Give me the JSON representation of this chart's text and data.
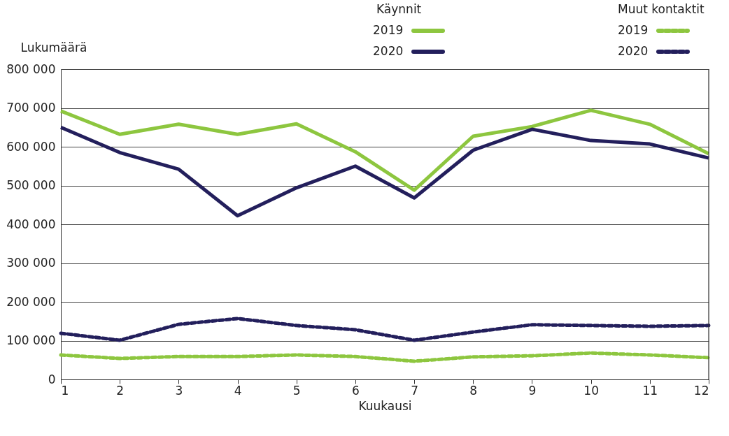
{
  "chart_data": {
    "type": "line",
    "xlabel": "Kuukausi",
    "ylabel": "Lukumäärä",
    "x": [
      1,
      2,
      3,
      4,
      5,
      6,
      7,
      8,
      9,
      10,
      11,
      12
    ],
    "xlim": [
      1,
      12
    ],
    "xticks": [
      1,
      2,
      3,
      4,
      5,
      6,
      7,
      8,
      9,
      10,
      11,
      12
    ],
    "ylim": [
      0,
      800000
    ],
    "yticks": [
      0,
      {
        "value": 100000,
        "label": "100 000"
      },
      {
        "value": 200000,
        "label": "200 000"
      },
      {
        "value": 300000,
        "label": "300 000"
      },
      {
        "value": 400000,
        "label": "400 000"
      },
      {
        "value": 500000,
        "label": "500 000"
      },
      {
        "value": 600000,
        "label": "600 000"
      },
      {
        "value": 700000,
        "label": "700 000"
      },
      {
        "value": 800000,
        "label": "800 000"
      }
    ],
    "grid": "y",
    "legend": "top right",
    "annotations": [
      "Käynnit",
      "Muut kontaktit"
    ],
    "series": [
      {
        "name": "2019",
        "color": "#8dc63f",
        "line_style": "solid",
        "values": [
          692000,
          632000,
          658000,
          632000,
          659000,
          587000,
          488000,
          627000,
          652000,
          694000,
          658000,
          582000
        ]
      },
      {
        "name": "2020",
        "color": "#231f5c",
        "line_style": "solid",
        "values": [
          650000,
          585000,
          542000,
          422000,
          494000,
          550000,
          468000,
          591000,
          645000,
          616000,
          607000,
          571000
        ]
      },
      {
        "name": "2019",
        "color": "#8dc63f",
        "line_style": "dashed",
        "values": [
          63000,
          54000,
          59000,
          59000,
          63000,
          59000,
          47000,
          58000,
          61000,
          68000,
          63000,
          56000
        ]
      },
      {
        "name": "2020",
        "color": "#231f5c",
        "line_style": "dashed",
        "values": [
          119000,
          101000,
          142000,
          157000,
          139000,
          128000,
          101000,
          122000,
          141000,
          139000,
          137000,
          139000
        ]
      }
    ]
  }
}
